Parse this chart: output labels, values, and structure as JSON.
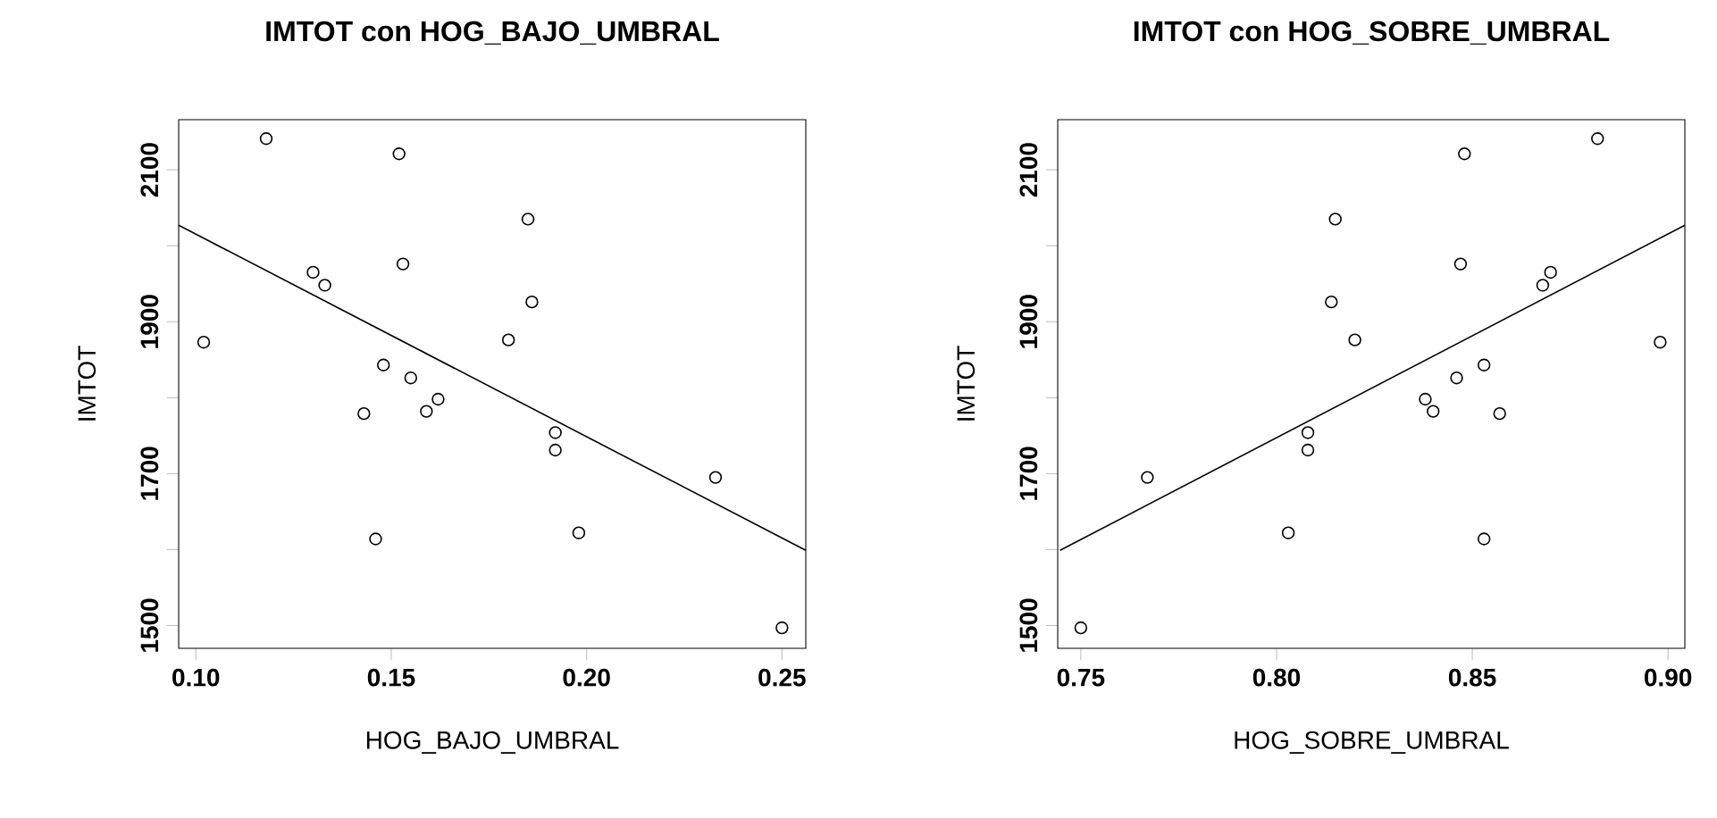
{
  "chart_data": [
    {
      "type": "scatter",
      "title": "IMTOT con HOG_BAJO_UMBRAL",
      "xlabel": "HOG_BAJO_UMBRAL",
      "ylabel": "IMTOT",
      "xlim": [
        0.0956,
        0.2561
      ],
      "ylim": [
        1470,
        2166
      ],
      "xticks": [
        {
          "value": 0.1,
          "label": "0.10"
        },
        0.15,
        {
          "value": 0.2,
          "label": "0.20"
        },
        0.25
      ],
      "yticks": [
        1500,
        {
          "value": 1600,
          "label": null
        },
        1700,
        {
          "value": 1800,
          "label": null
        },
        1900,
        {
          "value": 2000,
          "label": null
        },
        2100
      ],
      "series": [
        {
          "marker": "circle",
          "color": "#000000",
          "x": [
            0.118,
            0.152,
            0.185,
            0.13,
            0.133,
            0.153,
            0.186,
            0.102,
            0.18,
            0.148,
            0.155,
            0.143,
            0.159,
            0.162,
            0.192,
            0.192,
            0.233,
            0.146,
            0.198,
            0.25
          ],
          "values": [
            2141,
            2121,
            2035,
            1965,
            1948,
            1976,
            1926,
            1873,
            1876,
            1843,
            1826,
            1779,
            1782,
            1798,
            1754,
            1731,
            1695,
            1614,
            1622,
            1497
          ]
        },
        {
          "type": "line",
          "marker": "none",
          "color": "#000000",
          "x": [
            0.0956,
            0.2561
          ],
          "values": [
            2027,
            1599
          ]
        }
      ]
    },
    {
      "type": "scatter",
      "title": "IMTOT con HOG_SOBRE_UMBRAL",
      "xlabel": "HOG_SOBRE_UMBRAL",
      "ylabel": "IMTOT",
      "xlim": [
        0.7441,
        0.9043
      ],
      "ylim": [
        1470,
        2166
      ],
      "xticks": [
        0.75,
        {
          "value": 0.8,
          "label": "0.80"
        },
        0.85,
        {
          "value": 0.9,
          "label": "0.90"
        }
      ],
      "yticks": [
        1500,
        {
          "value": 1600,
          "label": null
        },
        1700,
        {
          "value": 1800,
          "label": null
        },
        1900,
        {
          "value": 2000,
          "label": null
        },
        2100
      ],
      "series": [
        {
          "marker": "circle",
          "color": "#000000",
          "x": [
            0.882,
            0.848,
            0.815,
            0.847,
            0.868,
            0.87,
            0.814,
            0.82,
            0.898,
            0.853,
            0.846,
            0.838,
            0.84,
            0.857,
            0.808,
            0.808,
            0.767,
            0.803,
            0.853,
            0.75
          ],
          "values": [
            2141,
            2121,
            2035,
            1976,
            1948,
            1965,
            1926,
            1876,
            1873,
            1843,
            1826,
            1798,
            1782,
            1779,
            1754,
            1731,
            1695,
            1622,
            1614,
            1497
          ]
        },
        {
          "type": "line",
          "marker": "none",
          "color": "#000000",
          "x": [
            0.7447,
            0.9043
          ],
          "values": [
            1599,
            2027
          ]
        }
      ]
    }
  ]
}
